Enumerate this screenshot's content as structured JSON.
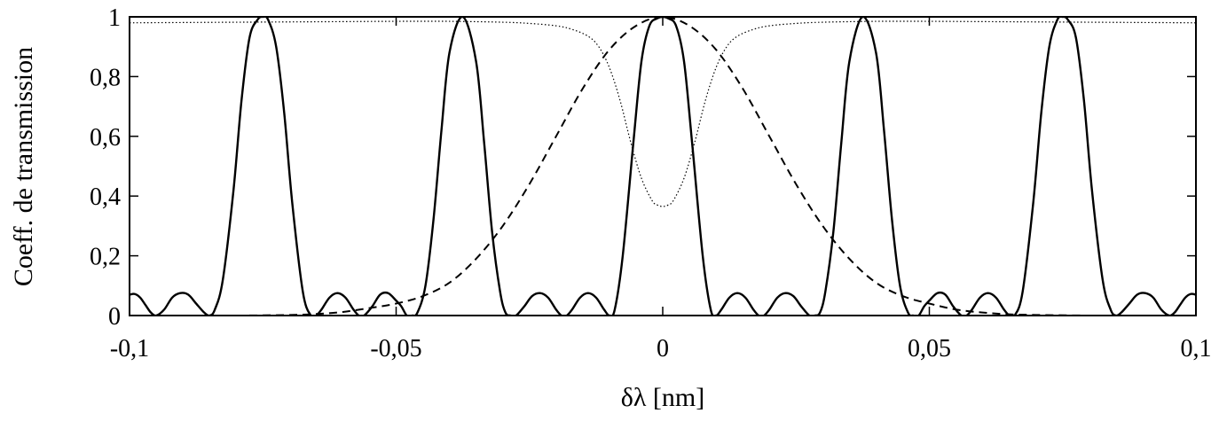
{
  "chart_data": {
    "type": "line",
    "title": "",
    "xlabel": "δλ [nm]",
    "ylabel": "Coeff. de transmission",
    "xlim": [
      -0.1,
      0.1
    ],
    "ylim": [
      0,
      1
    ],
    "grid": false,
    "legend": "none",
    "x_ticks": [
      {
        "value": -0.1,
        "label": "-0,1"
      },
      {
        "value": -0.05,
        "label": "-0,05"
      },
      {
        "value": 0,
        "label": "0"
      },
      {
        "value": 0.05,
        "label": "0,05"
      },
      {
        "value": 0.1,
        "label": "0,1"
      }
    ],
    "y_ticks": [
      {
        "value": 0,
        "label": "0"
      },
      {
        "value": 0.2,
        "label": "0,2"
      },
      {
        "value": 0.4,
        "label": "0,4"
      },
      {
        "value": 0.6,
        "label": "0,6"
      },
      {
        "value": 0.8,
        "label": "0,8"
      },
      {
        "value": 1,
        "label": "1"
      }
    ],
    "series": [
      {
        "style": "solid",
        "color": "#000000",
        "x": [
          -0.1,
          -0.099,
          -0.098,
          -0.097,
          -0.096,
          -0.095,
          -0.0935,
          -0.092,
          -0.0905,
          -0.089,
          -0.0875,
          -0.086,
          -0.085,
          -0.084,
          -0.0825,
          -0.0805,
          -0.079,
          -0.0775,
          -0.076,
          -0.075,
          -0.074,
          -0.0725,
          -0.071,
          -0.0695,
          -0.0675,
          -0.066,
          -0.065,
          -0.064,
          -0.0625,
          -0.061,
          -0.0595,
          -0.058,
          -0.057,
          -0.056,
          -0.0545,
          -0.053,
          -0.0515,
          -0.05,
          -0.049,
          -0.048,
          -0.047,
          -0.046,
          -0.0445,
          -0.043,
          -0.0415,
          -0.04,
          -0.0375,
          -0.035,
          -0.0335,
          -0.032,
          -0.0305,
          -0.0295,
          -0.0285,
          -0.0275,
          -0.026,
          -0.0245,
          -0.023,
          -0.0215,
          -0.02,
          -0.019,
          -0.018,
          -0.017,
          -0.0155,
          -0.014,
          -0.0125,
          -0.011,
          -0.01,
          -0.009,
          -0.0075,
          -0.0055,
          -0.004,
          -0.0025,
          -0.001,
          0,
          0.001,
          0.0025,
          0.004,
          0.0055,
          0.0075,
          0.009,
          0.01,
          0.011,
          0.0125,
          0.014,
          0.0155,
          0.017,
          0.018,
          0.019,
          0.02,
          0.0215,
          0.023,
          0.0245,
          0.026,
          0.0275,
          0.0285,
          0.0295,
          0.0305,
          0.032,
          0.0335,
          0.035,
          0.0375,
          0.04,
          0.0415,
          0.043,
          0.0445,
          0.046,
          0.047,
          0.048,
          0.049,
          0.05,
          0.0515,
          0.053,
          0.0545,
          0.056,
          0.057,
          0.058,
          0.0595,
          0.061,
          0.0625,
          0.064,
          0.065,
          0.066,
          0.0675,
          0.0695,
          0.071,
          0.0725,
          0.074,
          0.075,
          0.076,
          0.0775,
          0.079,
          0.0805,
          0.0825,
          0.084,
          0.085,
          0.086,
          0.0875,
          0.089,
          0.0905,
          0.092,
          0.0935,
          0.095,
          0.096,
          0.097,
          0.098,
          0.099,
          0.1
        ],
        "y": [
          0.07,
          0.072,
          0.06,
          0.035,
          0.01,
          0.0,
          0.02,
          0.06,
          0.075,
          0.07,
          0.04,
          0.01,
          0.0,
          0.02,
          0.12,
          0.42,
          0.72,
          0.93,
          0.99,
          1.0,
          0.99,
          0.9,
          0.68,
          0.38,
          0.08,
          0.0,
          0.0,
          0.02,
          0.06,
          0.075,
          0.06,
          0.02,
          0.0,
          0.0,
          0.03,
          0.07,
          0.075,
          0.05,
          0.03,
          0.0,
          0.0,
          0.01,
          0.1,
          0.32,
          0.62,
          0.88,
          1.0,
          0.85,
          0.58,
          0.28,
          0.08,
          0.01,
          0.0,
          0.0,
          0.03,
          0.065,
          0.075,
          0.06,
          0.02,
          0.0,
          0.0,
          0.02,
          0.06,
          0.075,
          0.06,
          0.02,
          0.0,
          0.02,
          0.2,
          0.58,
          0.85,
          0.97,
          0.995,
          1.0,
          0.995,
          0.97,
          0.85,
          0.58,
          0.2,
          0.02,
          0.0,
          0.02,
          0.06,
          0.075,
          0.06,
          0.02,
          0.0,
          0.0,
          0.02,
          0.06,
          0.075,
          0.065,
          0.03,
          0.0,
          0.0,
          0.01,
          0.08,
          0.28,
          0.58,
          0.85,
          1.0,
          0.88,
          0.62,
          0.32,
          0.1,
          0.01,
          0.0,
          0.0,
          0.03,
          0.05,
          0.075,
          0.07,
          0.03,
          0.0,
          0.0,
          0.02,
          0.06,
          0.075,
          0.06,
          0.02,
          0.0,
          0.0,
          0.08,
          0.38,
          0.68,
          0.9,
          0.99,
          1.0,
          0.99,
          0.93,
          0.72,
          0.42,
          0.12,
          0.02,
          0.0,
          0.01,
          0.04,
          0.07,
          0.075,
          0.06,
          0.02,
          0.0,
          0.01,
          0.035,
          0.06,
          0.072,
          0.07
        ]
      },
      {
        "style": "dashed",
        "color": "#000000",
        "x": [
          -0.1,
          -0.09,
          -0.08,
          -0.07,
          -0.065,
          -0.06,
          -0.055,
          -0.05,
          -0.045,
          -0.04,
          -0.035,
          -0.03,
          -0.025,
          -0.02,
          -0.015,
          -0.01,
          -0.005,
          0,
          0.005,
          0.01,
          0.015,
          0.02,
          0.025,
          0.03,
          0.035,
          0.04,
          0.045,
          0.05,
          0.055,
          0.06,
          0.065,
          0.07,
          0.08,
          0.09,
          0.1
        ],
        "y": [
          0.0,
          0.0,
          0.0,
          0.002,
          0.005,
          0.012,
          0.025,
          0.04,
          0.065,
          0.11,
          0.19,
          0.3,
          0.44,
          0.6,
          0.76,
          0.89,
          0.97,
          1.0,
          0.97,
          0.89,
          0.76,
          0.6,
          0.44,
          0.3,
          0.19,
          0.11,
          0.065,
          0.04,
          0.02,
          0.01,
          0.004,
          0.002,
          0.0,
          0.0,
          0.0
        ]
      },
      {
        "style": "dotted",
        "color": "#000000",
        "x": [
          -0.1,
          -0.09,
          -0.08,
          -0.07,
          -0.06,
          -0.05,
          -0.04,
          -0.03,
          -0.025,
          -0.02,
          -0.017,
          -0.014,
          -0.012,
          -0.01,
          -0.008,
          -0.006,
          -0.004,
          -0.002,
          -0.001,
          0,
          0.001,
          0.002,
          0.004,
          0.006,
          0.008,
          0.01,
          0.012,
          0.014,
          0.017,
          0.02,
          0.025,
          0.03,
          0.04,
          0.05,
          0.06,
          0.07,
          0.08,
          0.09,
          0.1
        ],
        "y": [
          0.98,
          0.981,
          0.982,
          0.983,
          0.984,
          0.985,
          0.985,
          0.982,
          0.978,
          0.97,
          0.958,
          0.935,
          0.9,
          0.83,
          0.72,
          0.58,
          0.46,
          0.385,
          0.37,
          0.365,
          0.37,
          0.385,
          0.46,
          0.58,
          0.72,
          0.83,
          0.9,
          0.935,
          0.958,
          0.97,
          0.978,
          0.982,
          0.985,
          0.985,
          0.984,
          0.983,
          0.982,
          0.981,
          0.98
        ]
      }
    ]
  }
}
